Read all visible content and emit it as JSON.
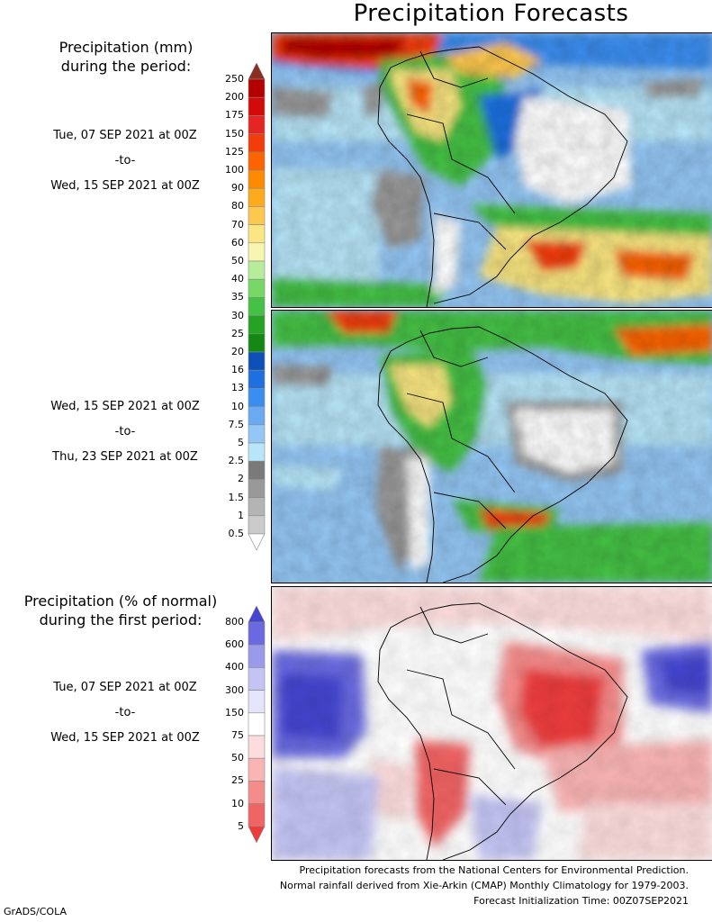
{
  "title": "Precipitation Forecasts",
  "mm_legend": {
    "heading_line1": "Precipitation (mm)",
    "heading_line2": "during the period:",
    "levels": [
      "250",
      "200",
      "175",
      "150",
      "125",
      "100",
      "90",
      "80",
      "70",
      "60",
      "50",
      "40",
      "35",
      "30",
      "25",
      "20",
      "16",
      "13",
      "10",
      "7.5",
      "5",
      "2.5",
      "2",
      "1.5",
      "1",
      "0.5"
    ],
    "colors": [
      "#8b2e22",
      "#b40000",
      "#d20a0a",
      "#e52424",
      "#f23c0a",
      "#fb6400",
      "#fd8a00",
      "#fdaa1e",
      "#fdc850",
      "#fae682",
      "#f7f5b0",
      "#b7ec9a",
      "#78d865",
      "#45c145",
      "#24a324",
      "#148814",
      "#0e4fb8",
      "#1f6fdf",
      "#3a8ef0",
      "#6aaaf3",
      "#94c7f5",
      "#b8e6f9",
      "#7a7a7a",
      "#999999",
      "#b4b4b4",
      "#cbcbcb",
      "#ffffff"
    ]
  },
  "period1": {
    "start": "Tue, 07 SEP 2021 at 00Z",
    "to": "-to-",
    "end": "Wed, 15 SEP 2021 at 00Z"
  },
  "period2": {
    "start": "Wed, 15 SEP 2021 at 00Z",
    "to": "-to-",
    "end": "Thu, 23 SEP 2021 at 00Z"
  },
  "pct_legend": {
    "heading_line1": "Precipitation (% of normal)",
    "heading_line2": "during the first period:",
    "levels": [
      "800",
      "600",
      "400",
      "300",
      "150",
      "75",
      "50",
      "25",
      "10",
      "5"
    ],
    "colors": [
      "#4545d0",
      "#6a6ae0",
      "#9a9aea",
      "#c4c4f4",
      "#e4e4fa",
      "#ffffff",
      "#fcdcdc",
      "#f9b4b4",
      "#f58c8c",
      "#f16464",
      "#ee3c3c"
    ]
  },
  "period3": {
    "start": "Tue, 07 SEP 2021 at 00Z",
    "to": "-to-",
    "end": "Wed, 15 SEP 2021 at 00Z"
  },
  "footer": {
    "line1": "Precipitation forecasts from the National Centers for Environmental Prediction.",
    "line2": "Normal rainfall derived from Xie-Arkin (CMAP) Monthly Climatology for 1979-2003.",
    "line3": "Forecast Initialization Time: 00Z07SEP2021"
  },
  "credit": "GrADS/COLA"
}
